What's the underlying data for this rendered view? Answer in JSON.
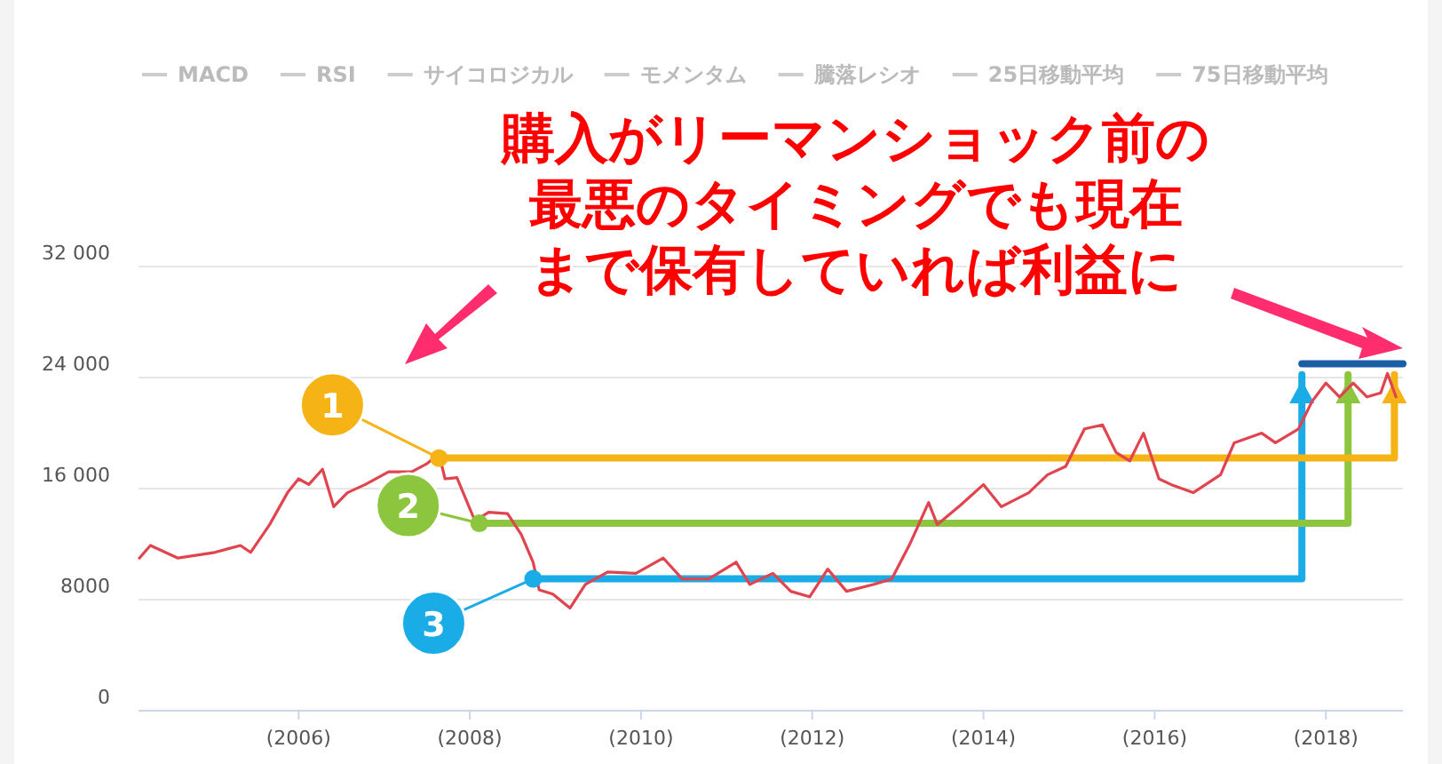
{
  "chart_data": {
    "type": "line",
    "xlim": [
      2004.13,
      2018.9
    ],
    "ylim": [
      0,
      32000
    ],
    "xticks": [
      {
        "value": 2006,
        "label": "(2006)"
      },
      {
        "value": 2008,
        "label": "(2008)"
      },
      {
        "value": 2010,
        "label": "(2010)"
      },
      {
        "value": 2012,
        "label": "(2012)"
      },
      {
        "value": 2014,
        "label": "(2014)"
      },
      {
        "value": 2016,
        "label": "(2016)"
      },
      {
        "value": 2018,
        "label": "(2018)"
      }
    ],
    "yticks": [
      0,
      8000,
      {
        "value": 16000,
        "label": "16 000"
      },
      {
        "value": 24000,
        "label": "24 000"
      },
      {
        "value": 32000,
        "label": "32 000"
      }
    ],
    "grid": "y",
    "legend": "top left",
    "marker": "none",
    "line_style": "solid",
    "series": [
      {
        "color": "#e0454f",
        "x": [
          2004.14,
          2004.27,
          2004.59,
          2005.02,
          2005.32,
          2005.44,
          2005.66,
          2005.87,
          2006.0,
          2006.12,
          2006.28,
          2006.41,
          2006.57,
          2006.78,
          2007.05,
          2007.32,
          2007.5,
          2007.64,
          2007.71,
          2007.85,
          2007.99,
          2008.06,
          2008.22,
          2008.44,
          2008.6,
          2008.74,
          2008.81,
          2008.97,
          2009.17,
          2009.35,
          2009.61,
          2009.94,
          2010.26,
          2010.48,
          2010.79,
          2011.11,
          2011.27,
          2011.54,
          2011.75,
          2011.97,
          2012.18,
          2012.4,
          2012.72,
          2012.93,
          2013.14,
          2013.36,
          2013.46,
          2013.73,
          2014.0,
          2014.21,
          2014.53,
          2014.75,
          2014.96,
          2015.18,
          2015.39,
          2015.55,
          2015.71,
          2015.87,
          2016.05,
          2016.19,
          2016.45,
          2016.77,
          2016.93,
          2017.25,
          2017.41,
          2017.68,
          2017.84,
          2018.0,
          2018.16,
          2018.32,
          2018.48,
          2018.64,
          2018.72,
          2018.82
        ],
        "values": [
          11000,
          11900,
          11000,
          11400,
          11900,
          11400,
          13400,
          15700,
          16700,
          16300,
          17400,
          14700,
          15700,
          16300,
          17200,
          17200,
          17800,
          18500,
          16700,
          16800,
          14700,
          13700,
          14300,
          14200,
          12700,
          10700,
          8700,
          8400,
          7400,
          9100,
          10000,
          9900,
          11000,
          9500,
          9500,
          10700,
          9100,
          9900,
          8600,
          8200,
          10200,
          8600,
          9100,
          9500,
          12000,
          15000,
          13400,
          14800,
          16300,
          14700,
          15700,
          17000,
          17600,
          20300,
          20600,
          18600,
          18000,
          20000,
          16700,
          16300,
          15700,
          17000,
          19300,
          20000,
          19300,
          20300,
          22300,
          23600,
          22600,
          23600,
          22600,
          22900,
          24300,
          22600
        ]
      },
      {
        "color": "#f5b315",
        "x": [
          2007.64,
          2018.8,
          2018.8
        ],
        "values": [
          18200,
          18200,
          24200
        ]
      },
      {
        "color": "#8cc63f",
        "x": [
          2008.11,
          2018.26,
          2018.26
        ],
        "values": [
          13500,
          13500,
          24200
        ]
      },
      {
        "color": "#1aace6",
        "x": [
          2008.74,
          2017.72,
          2017.72
        ],
        "values": [
          9500,
          9500,
          24200
        ]
      },
      {
        "color": "#1a5fa6",
        "x": [
          2017.72,
          2018.9
        ],
        "values": [
          25000,
          25000
        ]
      },
      {
        "name": "MACD",
        "color": "#cccccc"
      },
      {
        "name": "RSI",
        "color": "#cccccc"
      },
      {
        "name": "サイコロジカル",
        "color": "#cccccc"
      },
      {
        "name": "モメンタム",
        "color": "#cccccc"
      },
      {
        "name": "騰落レシオ",
        "color": "#cccccc"
      },
      {
        "name": "25日移動平均",
        "color": "#cccccc"
      },
      {
        "name": "75日移動平均",
        "color": "#cccccc"
      }
    ],
    "annotations": [
      "購入がリーマンショック前の",
      "最悪のタイミングでも現在",
      "まで保有していれば利益に",
      {
        "text": "1",
        "x": 2007.64,
        "y": 18200
      },
      {
        "text": "2",
        "x": 2008.11,
        "y": 13500
      },
      {
        "text": "3",
        "x": 2008.74,
        "y": 9500
      }
    ]
  }
}
